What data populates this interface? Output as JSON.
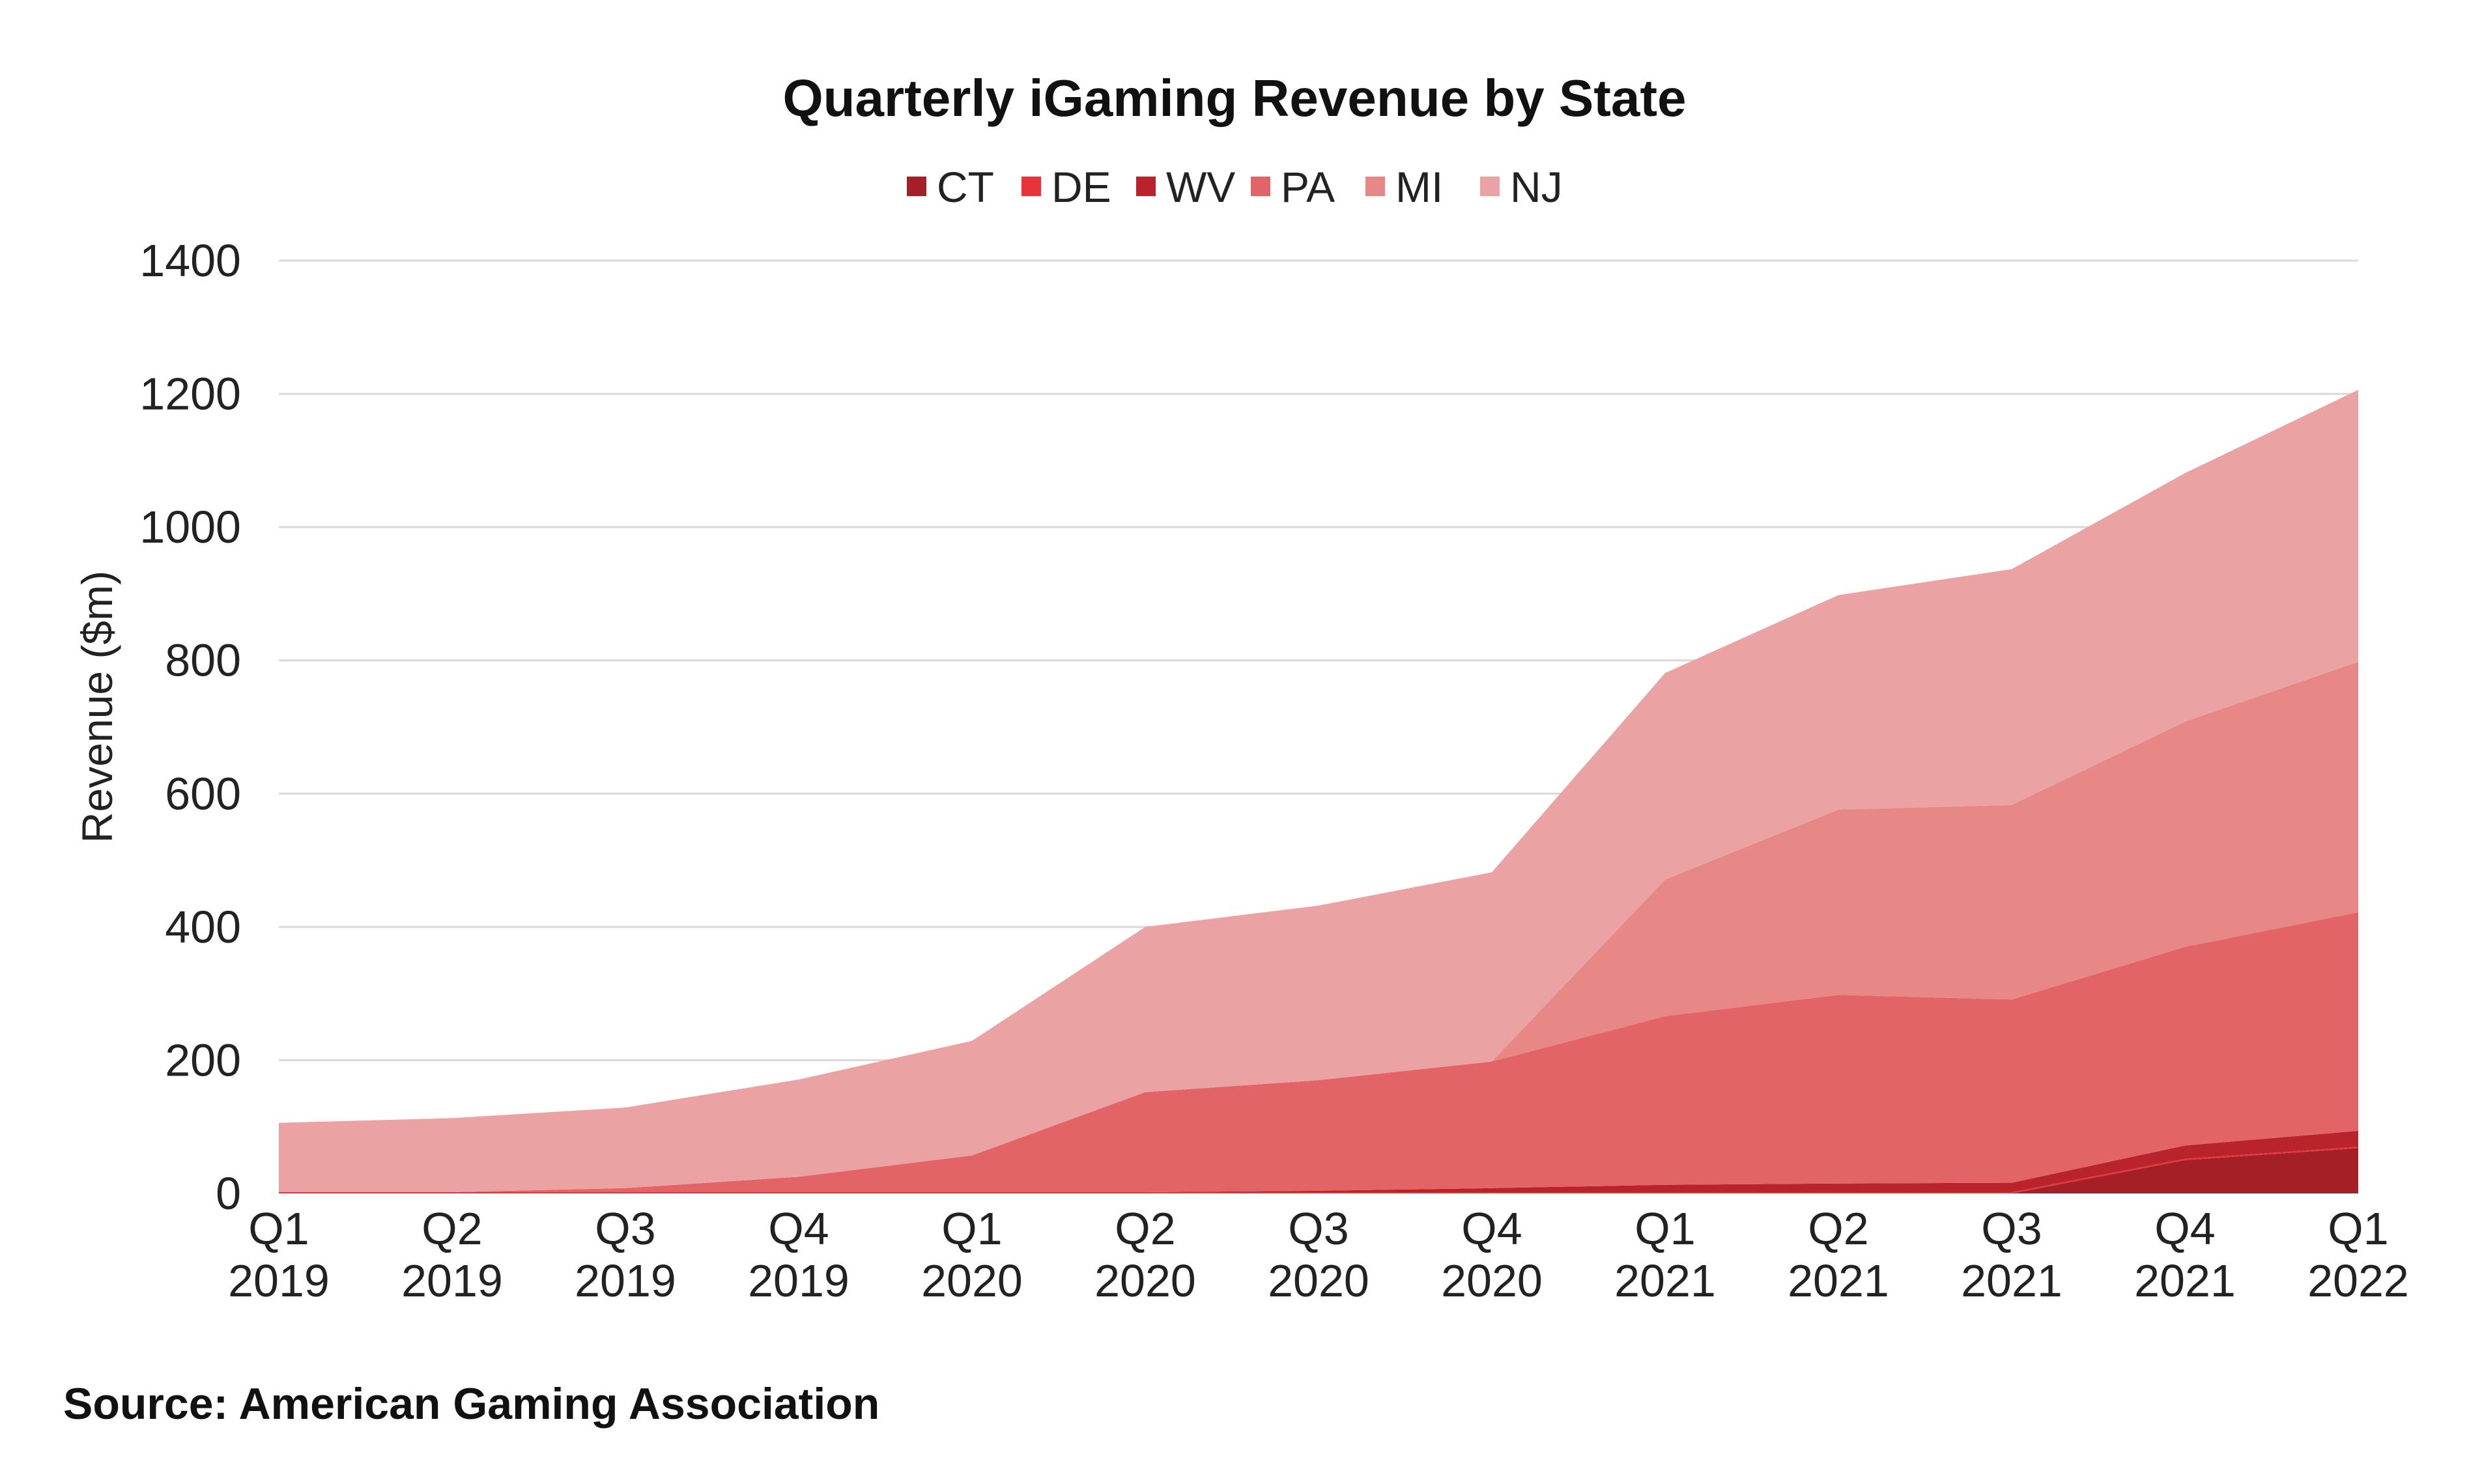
{
  "source": "Source: American Gaming Association",
  "colors": {
    "CT": "#a51f27",
    "DE": "#e8333a",
    "WV": "#b8232c",
    "PA": "#e26467",
    "MI": "#e88886",
    "NJ": "#eaa3a2",
    "gridline": "#d9d9d9",
    "text": "#222222"
  },
  "chart_data": {
    "type": "area",
    "stacked": true,
    "title": "Quarterly iGaming Revenue by State",
    "xlabel": "",
    "ylabel": "Revenue ($m)",
    "ylim": [
      0,
      1400
    ],
    "yticks": [
      0,
      200,
      400,
      600,
      800,
      1000,
      1200,
      1400
    ],
    "grid": true,
    "legend_position": "top-center",
    "categories": [
      [
        "Q1",
        "2019"
      ],
      [
        "Q2",
        "2019"
      ],
      [
        "Q3",
        "2019"
      ],
      [
        "Q4",
        "2019"
      ],
      [
        "Q1",
        "2020"
      ],
      [
        "Q2",
        "2020"
      ],
      [
        "Q3",
        "2020"
      ],
      [
        "Q4",
        "2020"
      ],
      [
        "Q1",
        "2021"
      ],
      [
        "Q2",
        "2021"
      ],
      [
        "Q3",
        "2021"
      ],
      [
        "Q4",
        "2021"
      ],
      [
        "Q1",
        "2022"
      ]
    ],
    "series": [
      {
        "name": "CT",
        "values": [
          0,
          0,
          0,
          0,
          0,
          0,
          0,
          0,
          0,
          0,
          0,
          50,
          68
        ]
      },
      {
        "name": "DE",
        "values": [
          2,
          2,
          2,
          2,
          2,
          2,
          2,
          2,
          2,
          2,
          2,
          2,
          2
        ]
      },
      {
        "name": "WV",
        "values": [
          0,
          0,
          0,
          0,
          0,
          0,
          2,
          6,
          11,
          13,
          14,
          20,
          24
        ]
      },
      {
        "name": "PA",
        "values": [
          0,
          0,
          6,
          23,
          55,
          150,
          166,
          190,
          253,
          283,
          275,
          298,
          328
        ]
      },
      {
        "name": "MI",
        "values": [
          0,
          0,
          0,
          0,
          0,
          0,
          0,
          0,
          205,
          278,
          292,
          338,
          376
        ]
      },
      {
        "name": "NJ",
        "values": [
          104,
          111,
          121,
          146,
          172,
          248,
          262,
          284,
          310,
          322,
          354,
          373,
          408
        ]
      }
    ]
  }
}
